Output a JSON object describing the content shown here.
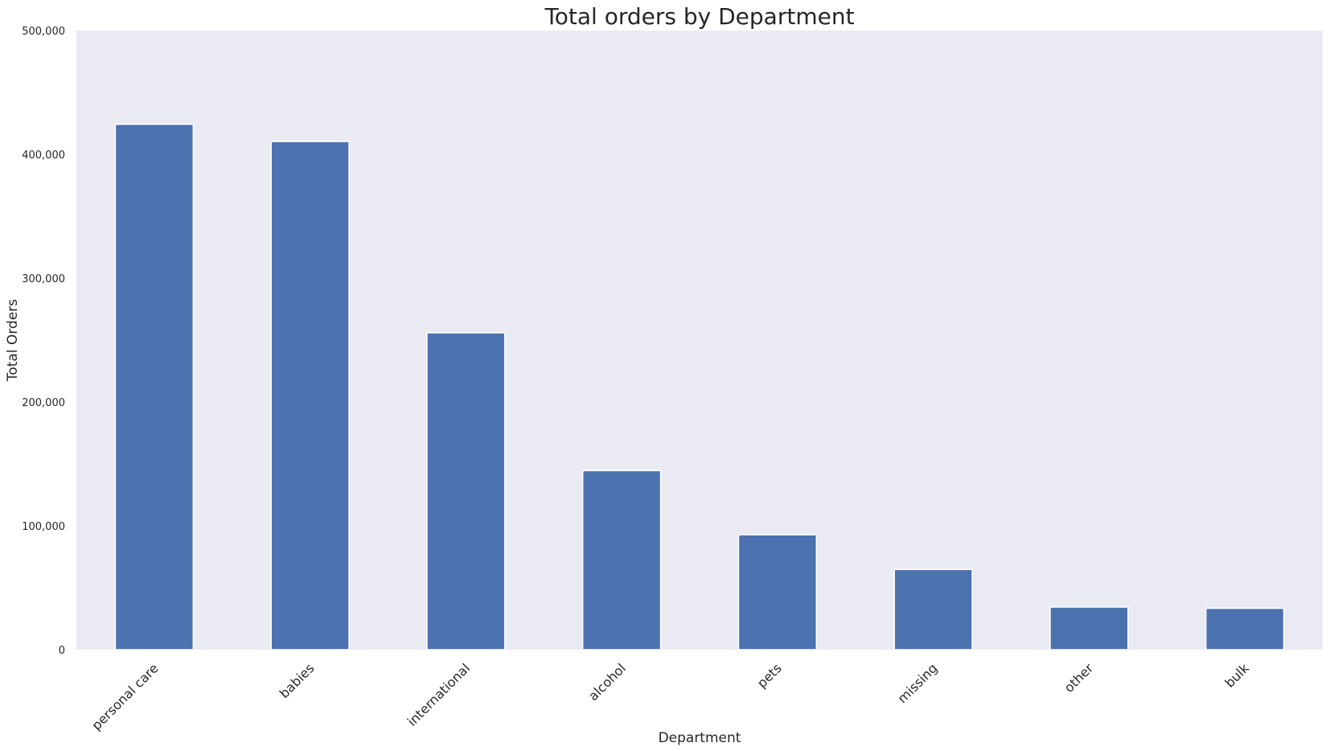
{
  "chart_data": {
    "type": "bar",
    "title": "Total orders by Department",
    "xlabel": "Department",
    "ylabel": "Total Orders",
    "categories": [
      "personal care",
      "babies",
      "international",
      "alcohol",
      "pets",
      "missing",
      "other",
      "bulk"
    ],
    "values": [
      424300,
      410400,
      255900,
      144600,
      92800,
      64800,
      34400,
      33400
    ],
    "ylim": [
      0,
      500000
    ],
    "yticks": [
      0,
      100000,
      200000,
      300000,
      400000,
      500000
    ],
    "ytick_labels": [
      "0",
      "100,000",
      "200,000",
      "300,000",
      "400,000",
      "500,000"
    ],
    "grid": false,
    "colors": {
      "bar": "#4c72b0",
      "plot_background": "#eaeaf2",
      "bar_edge": "#ffffff"
    }
  }
}
